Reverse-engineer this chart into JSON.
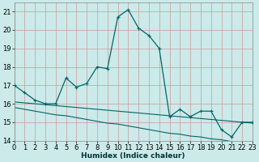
{
  "xlabel": "Humidex (Indice chaleur)",
  "background_color": "#cceaea",
  "grid_color": "#cc9999",
  "line_color": "#006666",
  "xlim": [
    0,
    23
  ],
  "ylim": [
    14,
    21.5
  ],
  "yticks": [
    14,
    15,
    16,
    17,
    18,
    19,
    20,
    21
  ],
  "xticks": [
    0,
    1,
    2,
    3,
    4,
    5,
    6,
    7,
    8,
    9,
    10,
    11,
    12,
    13,
    14,
    15,
    16,
    17,
    18,
    19,
    20,
    21,
    22,
    23
  ],
  "series1_x": [
    0,
    1,
    2,
    3,
    4,
    5,
    6,
    7,
    8,
    9,
    10,
    11,
    12,
    13,
    14,
    15,
    16,
    17,
    18,
    19,
    20,
    21,
    22,
    23
  ],
  "series1_y": [
    17.0,
    16.6,
    16.2,
    16.0,
    16.0,
    17.4,
    16.9,
    17.1,
    18.0,
    17.9,
    20.7,
    21.1,
    20.1,
    19.7,
    19.0,
    15.3,
    15.7,
    15.3,
    15.6,
    15.6,
    14.6,
    14.2,
    15.0,
    15.0
  ],
  "series2_x": [
    0,
    1,
    2,
    3,
    4,
    5,
    6,
    7,
    8,
    9,
    10,
    11,
    12,
    13,
    14,
    15,
    16,
    17,
    18,
    19,
    20,
    21,
    22,
    23
  ],
  "series2_y": [
    16.1,
    16.05,
    16.0,
    15.95,
    15.9,
    15.85,
    15.8,
    15.75,
    15.7,
    15.65,
    15.6,
    15.55,
    15.5,
    15.45,
    15.4,
    15.35,
    15.3,
    15.25,
    15.2,
    15.15,
    15.1,
    15.05,
    15.0,
    14.95
  ],
  "series3_x": [
    0,
    1,
    2,
    3,
    4,
    5,
    6,
    7,
    8,
    9,
    10,
    11,
    12,
    13,
    14,
    15,
    16,
    17,
    18,
    19,
    20,
    21,
    22,
    23
  ],
  "series3_y": [
    15.8,
    15.7,
    15.6,
    15.5,
    15.4,
    15.35,
    15.25,
    15.15,
    15.05,
    14.95,
    14.9,
    14.8,
    14.7,
    14.6,
    14.5,
    14.4,
    14.35,
    14.25,
    14.2,
    14.1,
    14.05,
    13.95,
    13.9,
    13.85
  ],
  "xlabel_fontsize": 6.5,
  "tick_fontsize": 6.0
}
